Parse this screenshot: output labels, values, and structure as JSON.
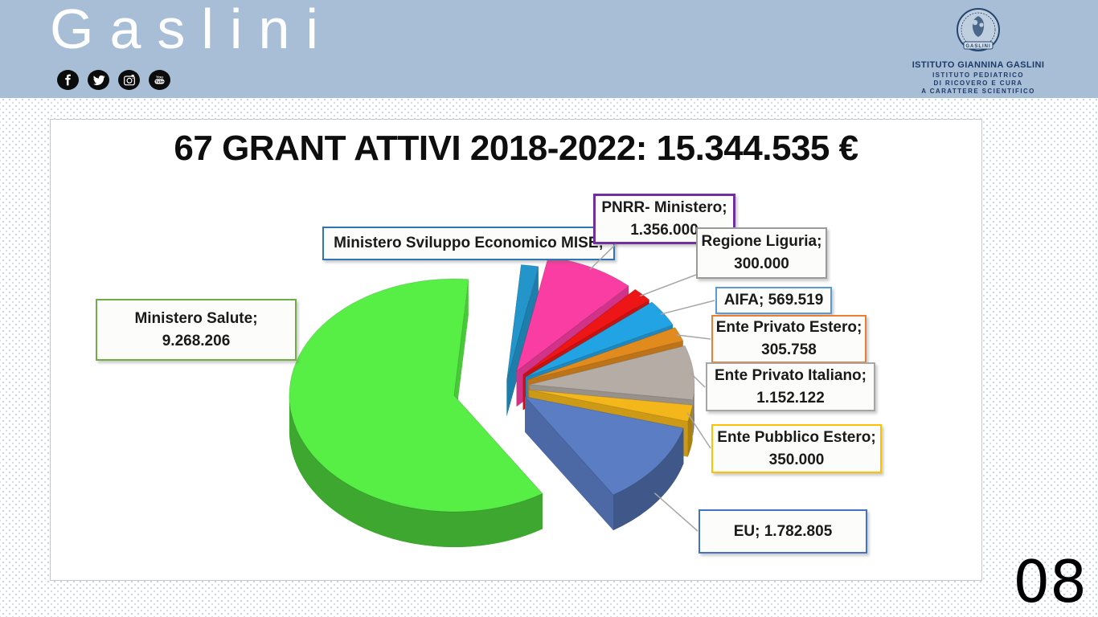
{
  "header": {
    "bg_color": "#a7bed6",
    "brand": "Gaslini",
    "social_icons": [
      "facebook-icon",
      "twitter-icon",
      "instagram-icon",
      "youtube-icon"
    ],
    "institute": {
      "seal_label": "GASLINI",
      "name": "ISTITUTO GIANNINA GASLINI",
      "descriptor_lines": [
        "ISTITUTO PEDIATRICO",
        "DI RICOVERO E CURA",
        "A CARATTERE SCIENTIFICO"
      ],
      "text_color": "#1e3a68"
    }
  },
  "slide": {
    "title": "67 GRANT ATTIVI 2018-2022: 15.344.535 €",
    "page_number": "08"
  },
  "chart_data": {
    "type": "pie",
    "style": "3d-exploded",
    "title": "67 GRANT ATTIVI 2018-2022: 15.344.535 €",
    "total": 15344535,
    "currency_symbol": "€",
    "start_angle_deg": -85,
    "legend_position": "callout-boxes",
    "slices": [
      {
        "name": "Ministero Sviluppo Economico MISE",
        "value": 260125,
        "value_estimated": true,
        "box_line1": "Ministero Sviluppo Economico MISE;",
        "box_line2": "",
        "color": "#2395CB",
        "box_border": "#2e75b6"
      },
      {
        "name": "PNRR- Ministero",
        "value": 1356000,
        "box_line1": "PNRR- Ministero;",
        "box_line2": "1.356.000",
        "color": "#F93DA2",
        "box_border": "#7030a0"
      },
      {
        "name": "Regione Liguria",
        "value": 300000,
        "box_line1": "Regione Liguria;",
        "box_line2": "300.000",
        "color": "#ED1515",
        "box_border": "#9a9a9a"
      },
      {
        "name": "AIFA",
        "value": 569519,
        "box_line1": "AIFA; 569.519",
        "box_line2": "",
        "color": "#22A3E4",
        "box_border": "#5b9bd5"
      },
      {
        "name": "Ente Privato Estero",
        "value": 305758,
        "box_line1": "Ente Privato Estero;",
        "box_line2": "305.758",
        "color": "#E18A1E",
        "box_border": "#ed7d31"
      },
      {
        "name": "Ente Privato Italiano",
        "value": 1152122,
        "box_line1": "Ente Privato Italiano;",
        "box_line2": "1.152.122",
        "color": "#B5ACA5",
        "box_border": "#a6a6a6"
      },
      {
        "name": "Ente Pubblico Estero",
        "value": 350000,
        "box_line1": "Ente Pubblico Estero;",
        "box_line2": "350.000",
        "color": "#F3B71B",
        "box_border": "#ffc000"
      },
      {
        "name": "EU",
        "value": 1782805,
        "box_line1": "EU; 1.782.805",
        "box_line2": "",
        "color": "#5A7DC4",
        "box_border": "#4472c4"
      },
      {
        "name": "Ministero Salute",
        "value": 9268206,
        "box_line1": "Ministero Salute;",
        "box_line2": "9.268.206",
        "color": "#57EF45",
        "box_border": "#70ad47"
      }
    ]
  }
}
